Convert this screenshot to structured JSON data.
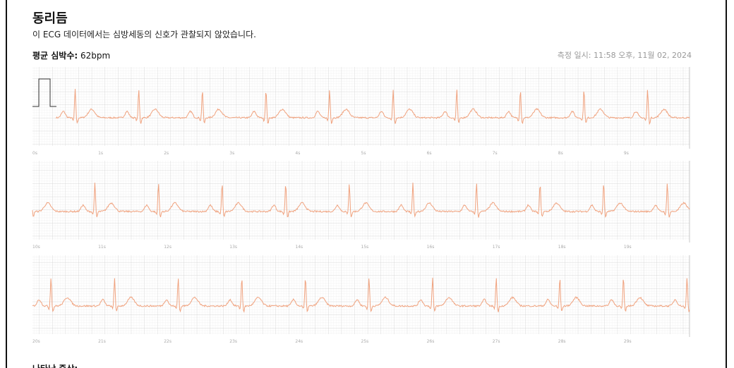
{
  "header": {
    "title": "동리듬",
    "description": "이 ECG 데이터에서는 심방세동의 신호가 관찰되지 않았습니다."
  },
  "summary": {
    "heart_rate_label": "평균 심박수:",
    "heart_rate_value": "62bpm",
    "recorded_at": "측정 일시: 11:58 오후, 11월 02, 2024"
  },
  "strips": [
    {
      "time_labels": [
        "0s",
        "1s",
        "2s",
        "3s",
        "4s",
        "5s",
        "6s",
        "7s",
        "8s",
        "9s"
      ]
    },
    {
      "time_labels": [
        "10s",
        "11s",
        "12s",
        "13s",
        "14s",
        "15s",
        "16s",
        "17s",
        "18s",
        "19s"
      ]
    },
    {
      "time_labels": [
        "20s",
        "21s",
        "22s",
        "23s",
        "24s",
        "25s",
        "26s",
        "27s",
        "28s",
        "29s"
      ]
    }
  ],
  "symptoms": {
    "label": "나타난 증상:"
  }
}
